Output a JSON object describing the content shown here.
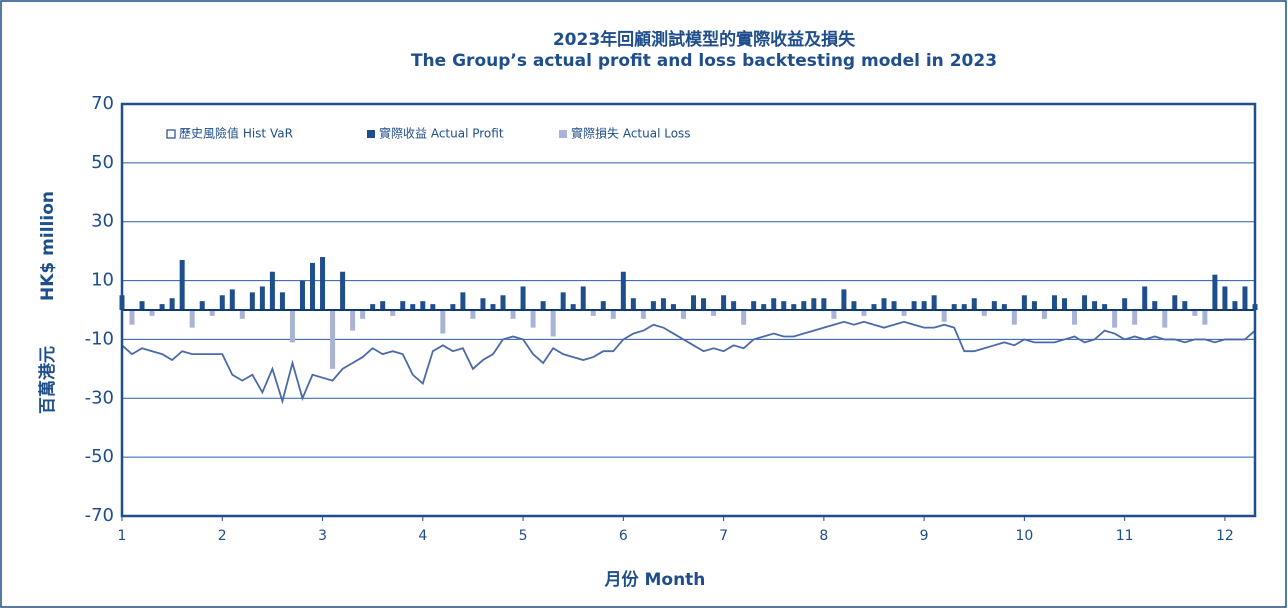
{
  "chart_data": {
    "type": "bar",
    "title": "2023年回顧測試模型的實際收益及損失",
    "subtitle": "The Group’s actual profit and loss backtesting model in 2023",
    "ylabel": "HK$ million",
    "ylabel2": "百萬港元",
    "xlabel": "月份 Month",
    "legend": "upper left",
    "grid": true,
    "xlim": [
      1,
      12.3
    ],
    "xticks": [
      1,
      2,
      3,
      4,
      5,
      6,
      7,
      8,
      9,
      10,
      11,
      12
    ],
    "ylim": [
      -70,
      70
    ],
    "yticks": [
      -70,
      -50,
      -30,
      -10,
      10,
      30,
      50,
      70
    ],
    "x": [
      1.0,
      1.1,
      1.2,
      1.3,
      1.4,
      1.5,
      1.6,
      1.7,
      1.8,
      1.9,
      2.0,
      2.1,
      2.2,
      2.3,
      2.4,
      2.5,
      2.6,
      2.7,
      2.8,
      2.9,
      3.0,
      3.1,
      3.2,
      3.3,
      3.4,
      3.5,
      3.6,
      3.7,
      3.8,
      3.9,
      4.0,
      4.1,
      4.2,
      4.3,
      4.4,
      4.5,
      4.6,
      4.7,
      4.8,
      4.9,
      5.0,
      5.1,
      5.2,
      5.3,
      5.4,
      5.5,
      5.6,
      5.7,
      5.8,
      5.9,
      6.0,
      6.1,
      6.2,
      6.3,
      6.4,
      6.5,
      6.6,
      6.7,
      6.8,
      6.9,
      7.0,
      7.1,
      7.2,
      7.3,
      7.4,
      7.5,
      7.6,
      7.7,
      7.8,
      7.9,
      8.0,
      8.1,
      8.2,
      8.3,
      8.4,
      8.5,
      8.6,
      8.7,
      8.8,
      8.9,
      9.0,
      9.1,
      9.2,
      9.3,
      9.4,
      9.5,
      9.6,
      9.7,
      9.8,
      9.9,
      10.0,
      10.1,
      10.2,
      10.3,
      10.4,
      10.5,
      10.6,
      10.7,
      10.8,
      10.9,
      11.0,
      11.1,
      11.2,
      11.3,
      11.4,
      11.5,
      11.6,
      11.7,
      11.8,
      11.9,
      12.0,
      12.1,
      12.2,
      12.3
    ],
    "series": [
      {
        "name": "歷史風險值 Hist VaR",
        "kind": "line",
        "color": "#4a6aa8",
        "values": [
          -12,
          -15,
          -13,
          -14,
          -15,
          -17,
          -14,
          -15,
          -15,
          -15,
          -15,
          -22,
          -24,
          -22,
          -28,
          -20,
          -31,
          -18,
          -30,
          -22,
          -23,
          -24,
          -20,
          -18,
          -16,
          -13,
          -15,
          -14,
          -15,
          -22,
          -25,
          -14,
          -12,
          -14,
          -13,
          -20,
          -17,
          -15,
          -10,
          -9,
          -10,
          -15,
          -18,
          -13,
          -15,
          -16,
          -17,
          -16,
          -14,
          -14,
          -10,
          -8,
          -7,
          -5,
          -6,
          -8,
          -10,
          -12,
          -14,
          -13,
          -14,
          -12,
          -13,
          -10,
          -9,
          -8,
          -9,
          -9,
          -8,
          -7,
          -6,
          -5,
          -4,
          -5,
          -4,
          -5,
          -6,
          -5,
          -4,
          -5,
          -6,
          -6,
          -5,
          -6,
          -14,
          -14,
          -13,
          -12,
          -11,
          -12,
          -10,
          -11,
          -11,
          -11,
          -10,
          -9,
          -11,
          -10,
          -7,
          -8,
          -10,
          -9,
          -10,
          -9,
          -10,
          -10,
          -11,
          -10,
          -10,
          -11,
          -10,
          -10,
          -10,
          -7
        ]
      },
      {
        "name": "實際收益 Actual Profit",
        "kind": "bar",
        "color": "#1f4e8c",
        "values": [
          5,
          null,
          3,
          null,
          2,
          4,
          17,
          null,
          3,
          null,
          5,
          7,
          null,
          6,
          8,
          13,
          6,
          null,
          10,
          16,
          18,
          null,
          13,
          null,
          null,
          2,
          3,
          null,
          3,
          2,
          3,
          2,
          null,
          2,
          6,
          null,
          4,
          2,
          5,
          null,
          8,
          null,
          3,
          null,
          6,
          2,
          8,
          null,
          3,
          null,
          13,
          4,
          null,
          3,
          4,
          2,
          null,
          5,
          4,
          null,
          5,
          3,
          null,
          3,
          2,
          4,
          3,
          2,
          3,
          4,
          4,
          null,
          7,
          3,
          null,
          2,
          4,
          3,
          null,
          3,
          3,
          5,
          null,
          2,
          2,
          4,
          null,
          3,
          2,
          null,
          5,
          3,
          null,
          5,
          4,
          null,
          5,
          3,
          2,
          null,
          4,
          null,
          8,
          3,
          null,
          5,
          3,
          null,
          null,
          12,
          8,
          3,
          8,
          2
        ]
      },
      {
        "name": "實際損失 Actual Loss",
        "kind": "bar",
        "color": "#a9b3d6",
        "values": [
          null,
          -5,
          null,
          -2,
          null,
          null,
          null,
          -6,
          null,
          -2,
          null,
          null,
          -3,
          null,
          null,
          null,
          null,
          -11,
          null,
          null,
          null,
          -20,
          null,
          -7,
          -3,
          null,
          null,
          -2,
          null,
          null,
          null,
          null,
          -8,
          null,
          null,
          -3,
          null,
          null,
          null,
          -3,
          null,
          -6,
          null,
          -9,
          null,
          null,
          null,
          -2,
          null,
          -3,
          null,
          null,
          -3,
          null,
          null,
          null,
          -3,
          null,
          null,
          -2,
          null,
          null,
          -5,
          null,
          null,
          null,
          null,
          null,
          null,
          null,
          null,
          -3,
          null,
          null,
          -2,
          null,
          null,
          null,
          -2,
          null,
          null,
          null,
          -4,
          null,
          null,
          null,
          -2,
          null,
          null,
          -5,
          null,
          null,
          -3,
          null,
          null,
          -5,
          null,
          null,
          null,
          -6,
          null,
          -5,
          null,
          null,
          -6,
          null,
          null,
          -2,
          -5,
          null,
          null,
          null,
          null,
          null
        ]
      }
    ]
  }
}
